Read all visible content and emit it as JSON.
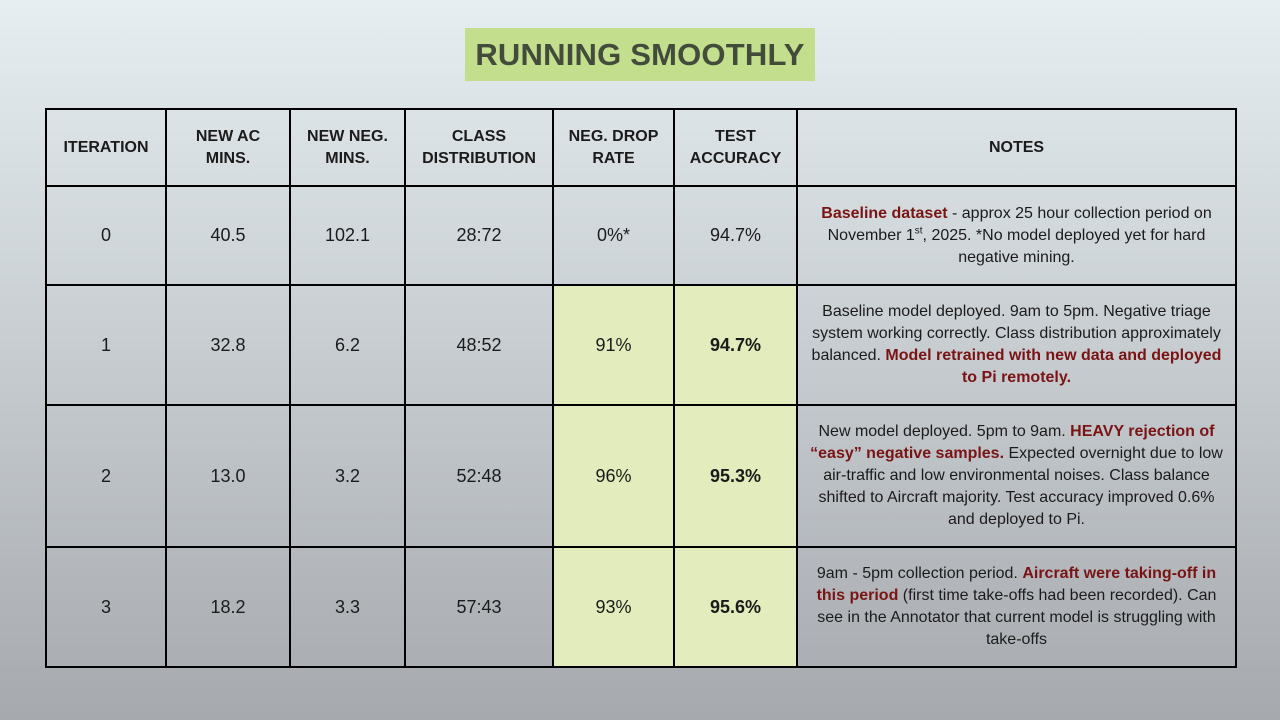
{
  "title": "RUNNING SMOOTHLY",
  "table": {
    "headers": [
      "ITERATION",
      "NEW AC MINS.",
      "NEW NEG. MINS.",
      "CLASS DISTRIBUTION",
      "NEG. DROP RATE",
      "TEST ACCURACY",
      "NOTES"
    ],
    "rows": [
      {
        "iteration": "0",
        "new_ac": "40.5",
        "new_neg": "102.1",
        "class_dist": "28:72",
        "drop_rate": "0%*",
        "accuracy": "94.7%",
        "notes": {
          "em1": "Baseline dataset",
          "t1": " - approx 25 hour collection period on November 1",
          "sup": "st",
          "t2": ", 2025. *No model deployed yet for hard negative mining."
        }
      },
      {
        "iteration": "1",
        "new_ac": "32.8",
        "new_neg": "6.2",
        "class_dist": "48:52",
        "drop_rate": "91%",
        "accuracy": "94.7%",
        "notes": {
          "t1": "Baseline model deployed. 9am to 5pm. Negative triage system working correctly. Class distribution approximately balanced. ",
          "em1": "Model retrained with new data and deployed to Pi remotely."
        }
      },
      {
        "iteration": "2",
        "new_ac": "13.0",
        "new_neg": "3.2",
        "class_dist": "52:48",
        "drop_rate": "96%",
        "accuracy": "95.3%",
        "notes": {
          "t1": "New model deployed. 5pm to 9am. ",
          "em1": "HEAVY rejection of “easy” negative samples.",
          "t2": " Expected overnight due to low air-traffic and low environmental noises. Class balance shifted to Aircraft majority. Test accuracy improved 0.6% and deployed to Pi."
        }
      },
      {
        "iteration": "3",
        "new_ac": "18.2",
        "new_neg": "3.3",
        "class_dist": "57:43",
        "drop_rate": "93%",
        "accuracy": "95.6%",
        "notes": {
          "t1": "9am - 5pm collection period. ",
          "em1": "Aircraft were taking-off in this period",
          "t2": " (first time take-offs had been recorded). Can see in the Annotator that current model is struggling with take-offs"
        }
      }
    ]
  },
  "colors": {
    "title_bg": "#c3df8e",
    "highlight_cell": "#e2ecbd",
    "emphasis_text": "#7a1414"
  }
}
